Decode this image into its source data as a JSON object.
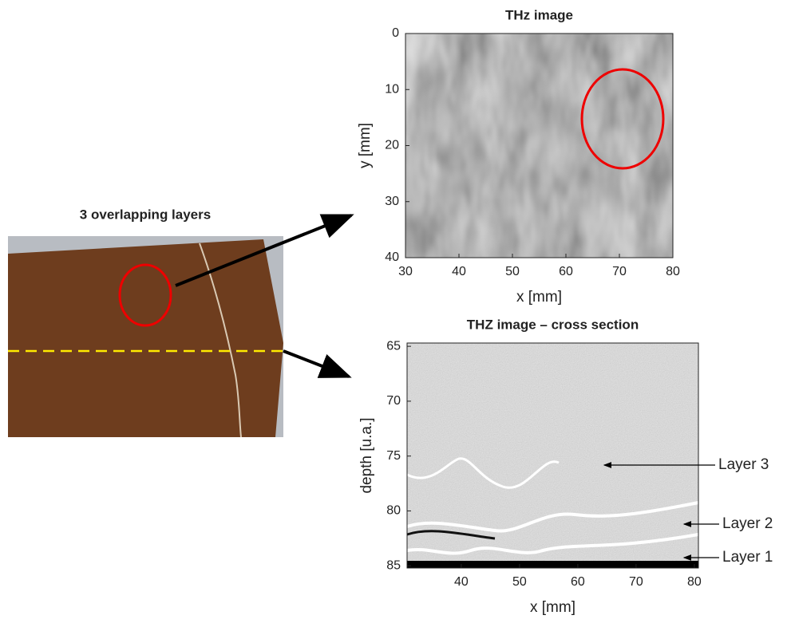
{
  "photo": {
    "title": "3 overlapping layers"
  },
  "chart_data": [
    {
      "type": "image",
      "title": "THz image",
      "x_label": "x [mm]",
      "y_label": "y [mm]",
      "xlim": [
        30,
        80
      ],
      "ylim": [
        0,
        40
      ],
      "y_reversed": true,
      "xticks": [
        30,
        40,
        50,
        60,
        70,
        80
      ],
      "yticks": [
        0,
        10,
        20,
        30,
        40
      ]
    },
    {
      "type": "image",
      "title": "THZ image – cross section",
      "x_label": "x [mm]",
      "y_label": "depth [u.a.]",
      "xlim": [
        30.7,
        80.7
      ],
      "ylim": [
        64.7,
        85.2
      ],
      "y_reversed": true,
      "xticks": [
        40,
        50,
        60,
        70,
        80
      ],
      "yticks": [
        65,
        70,
        75,
        80,
        85
      ],
      "annotations": [
        "Layer 3",
        "Layer 2",
        "Layer 1"
      ]
    }
  ]
}
